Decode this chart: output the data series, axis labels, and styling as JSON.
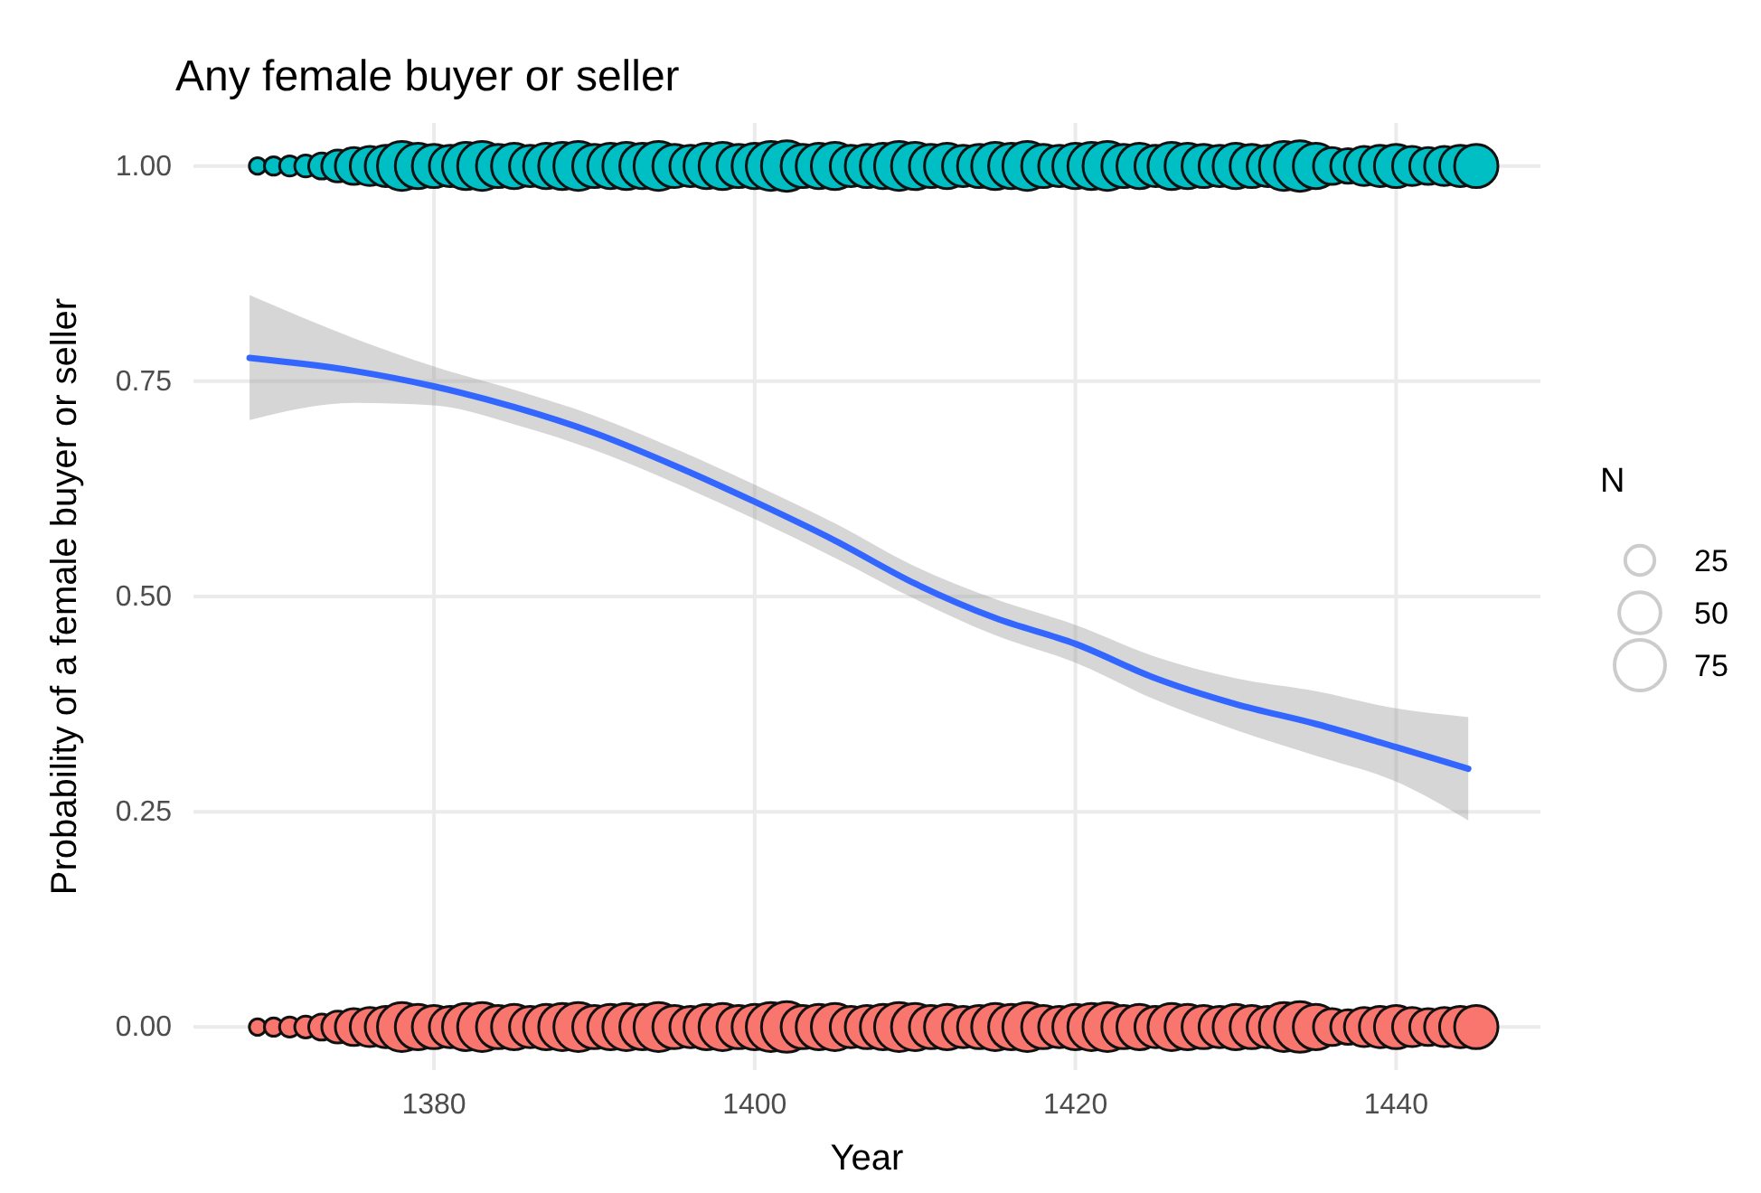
{
  "chart_data": {
    "type": "bubble",
    "title": "Any female buyer or seller",
    "xlabel": "Year",
    "ylabel": "Probability of a female buyer or seller",
    "legend_title": "N",
    "grid": true,
    "xlim": [
      1365,
      1449
    ],
    "xticks": [
      1380,
      1400,
      1420,
      1440
    ],
    "ylim": [
      -0.05,
      1.05
    ],
    "yticks": [
      {
        "value": 0,
        "label": "0.00"
      },
      {
        "value": 0.25,
        "label": "0.25"
      },
      {
        "value": 0.5,
        "label": "0.50"
      },
      {
        "value": 0.75,
        "label": "0.75"
      },
      {
        "value": 1,
        "label": "1.00"
      }
    ],
    "size_legend": [
      25,
      50,
      75
    ],
    "x": [
      1369,
      1370,
      1371,
      1372,
      1373,
      1374,
      1375,
      1376,
      1377,
      1378,
      1379,
      1380,
      1381,
      1382,
      1383,
      1384,
      1385,
      1386,
      1387,
      1388,
      1389,
      1390,
      1391,
      1392,
      1393,
      1394,
      1395,
      1396,
      1397,
      1398,
      1399,
      1400,
      1401,
      1402,
      1403,
      1404,
      1405,
      1406,
      1407,
      1408,
      1409,
      1410,
      1411,
      1412,
      1413,
      1414,
      1415,
      1416,
      1417,
      1418,
      1419,
      1420,
      1421,
      1422,
      1423,
      1424,
      1425,
      1426,
      1427,
      1428,
      1429,
      1430,
      1431,
      1432,
      1433,
      1434,
      1435,
      1436,
      1437,
      1438,
      1439,
      1440,
      1441,
      1442,
      1443,
      1444,
      1445
    ],
    "series": [
      {
        "marker": "circle",
        "color": "#00bfc4",
        "values": [
          1,
          1,
          1,
          1,
          1,
          1,
          1,
          1,
          1,
          1,
          1,
          1,
          1,
          1,
          1,
          1,
          1,
          1,
          1,
          1,
          1,
          1,
          1,
          1,
          1,
          1,
          1,
          1,
          1,
          1,
          1,
          1,
          1,
          1,
          1,
          1,
          1,
          1,
          1,
          1,
          1,
          1,
          1,
          1,
          1,
          1,
          1,
          1,
          1,
          1,
          1,
          1,
          1,
          1,
          1,
          1,
          1,
          1,
          1,
          1,
          1,
          1,
          1,
          1,
          1,
          1,
          1,
          1,
          1,
          1,
          1,
          1,
          1,
          1,
          1,
          1,
          1
        ],
        "sizes": [
          8,
          10,
          12,
          14,
          20,
          30,
          40,
          45,
          50,
          70,
          60,
          55,
          50,
          65,
          70,
          55,
          60,
          50,
          60,
          65,
          70,
          55,
          60,
          65,
          60,
          70,
          55,
          50,
          60,
          65,
          55,
          60,
          70,
          75,
          55,
          60,
          65,
          50,
          55,
          60,
          70,
          65,
          55,
          60,
          50,
          55,
          65,
          60,
          70,
          55,
          50,
          60,
          65,
          70,
          55,
          60,
          50,
          65,
          60,
          55,
          50,
          60,
          55,
          50,
          70,
          75,
          60,
          40,
          35,
          45,
          50,
          55,
          45,
          40,
          45,
          50,
          55
        ]
      },
      {
        "marker": "circle",
        "color": "#f8766d",
        "values": [
          0,
          0,
          0,
          0,
          0,
          0,
          0,
          0,
          0,
          0,
          0,
          0,
          0,
          0,
          0,
          0,
          0,
          0,
          0,
          0,
          0,
          0,
          0,
          0,
          0,
          0,
          0,
          0,
          0,
          0,
          0,
          0,
          0,
          0,
          0,
          0,
          0,
          0,
          0,
          0,
          0,
          0,
          0,
          0,
          0,
          0,
          0,
          0,
          0,
          0,
          0,
          0,
          0,
          0,
          0,
          0,
          0,
          0,
          0,
          0,
          0,
          0,
          0,
          0,
          0,
          0,
          0,
          0,
          0,
          0,
          0,
          0,
          0,
          0,
          0,
          0,
          0
        ],
        "sizes": [
          8,
          10,
          12,
          14,
          20,
          30,
          40,
          45,
          50,
          70,
          60,
          55,
          50,
          65,
          70,
          55,
          60,
          50,
          60,
          65,
          70,
          55,
          60,
          65,
          60,
          70,
          55,
          50,
          60,
          65,
          55,
          60,
          70,
          75,
          55,
          60,
          65,
          50,
          55,
          60,
          70,
          65,
          55,
          60,
          50,
          55,
          65,
          60,
          70,
          55,
          50,
          60,
          65,
          70,
          55,
          60,
          50,
          65,
          60,
          55,
          50,
          60,
          55,
          50,
          70,
          75,
          60,
          40,
          35,
          45,
          50,
          55,
          45,
          40,
          45,
          50,
          55
        ]
      },
      {
        "type": "line",
        "color": "#3366ff",
        "x": [
          1368.5,
          1375,
          1380,
          1385,
          1390,
          1395,
          1400,
          1405,
          1410,
          1415,
          1420,
          1425,
          1430,
          1435,
          1440,
          1444.5
        ],
        "values": [
          0.777,
          0.762,
          0.744,
          0.72,
          0.69,
          0.652,
          0.61,
          0.565,
          0.515,
          0.475,
          0.445,
          0.405,
          0.375,
          0.352,
          0.325,
          0.3
        ],
        "lower": [
          0.705,
          0.725,
          0.722,
          0.7,
          0.67,
          0.632,
          0.59,
          0.545,
          0.497,
          0.455,
          0.423,
          0.38,
          0.345,
          0.315,
          0.285,
          0.24
        ],
        "upper": [
          0.85,
          0.8,
          0.767,
          0.74,
          0.71,
          0.672,
          0.63,
          0.585,
          0.535,
          0.497,
          0.467,
          0.43,
          0.405,
          0.39,
          0.37,
          0.36
        ]
      }
    ]
  }
}
